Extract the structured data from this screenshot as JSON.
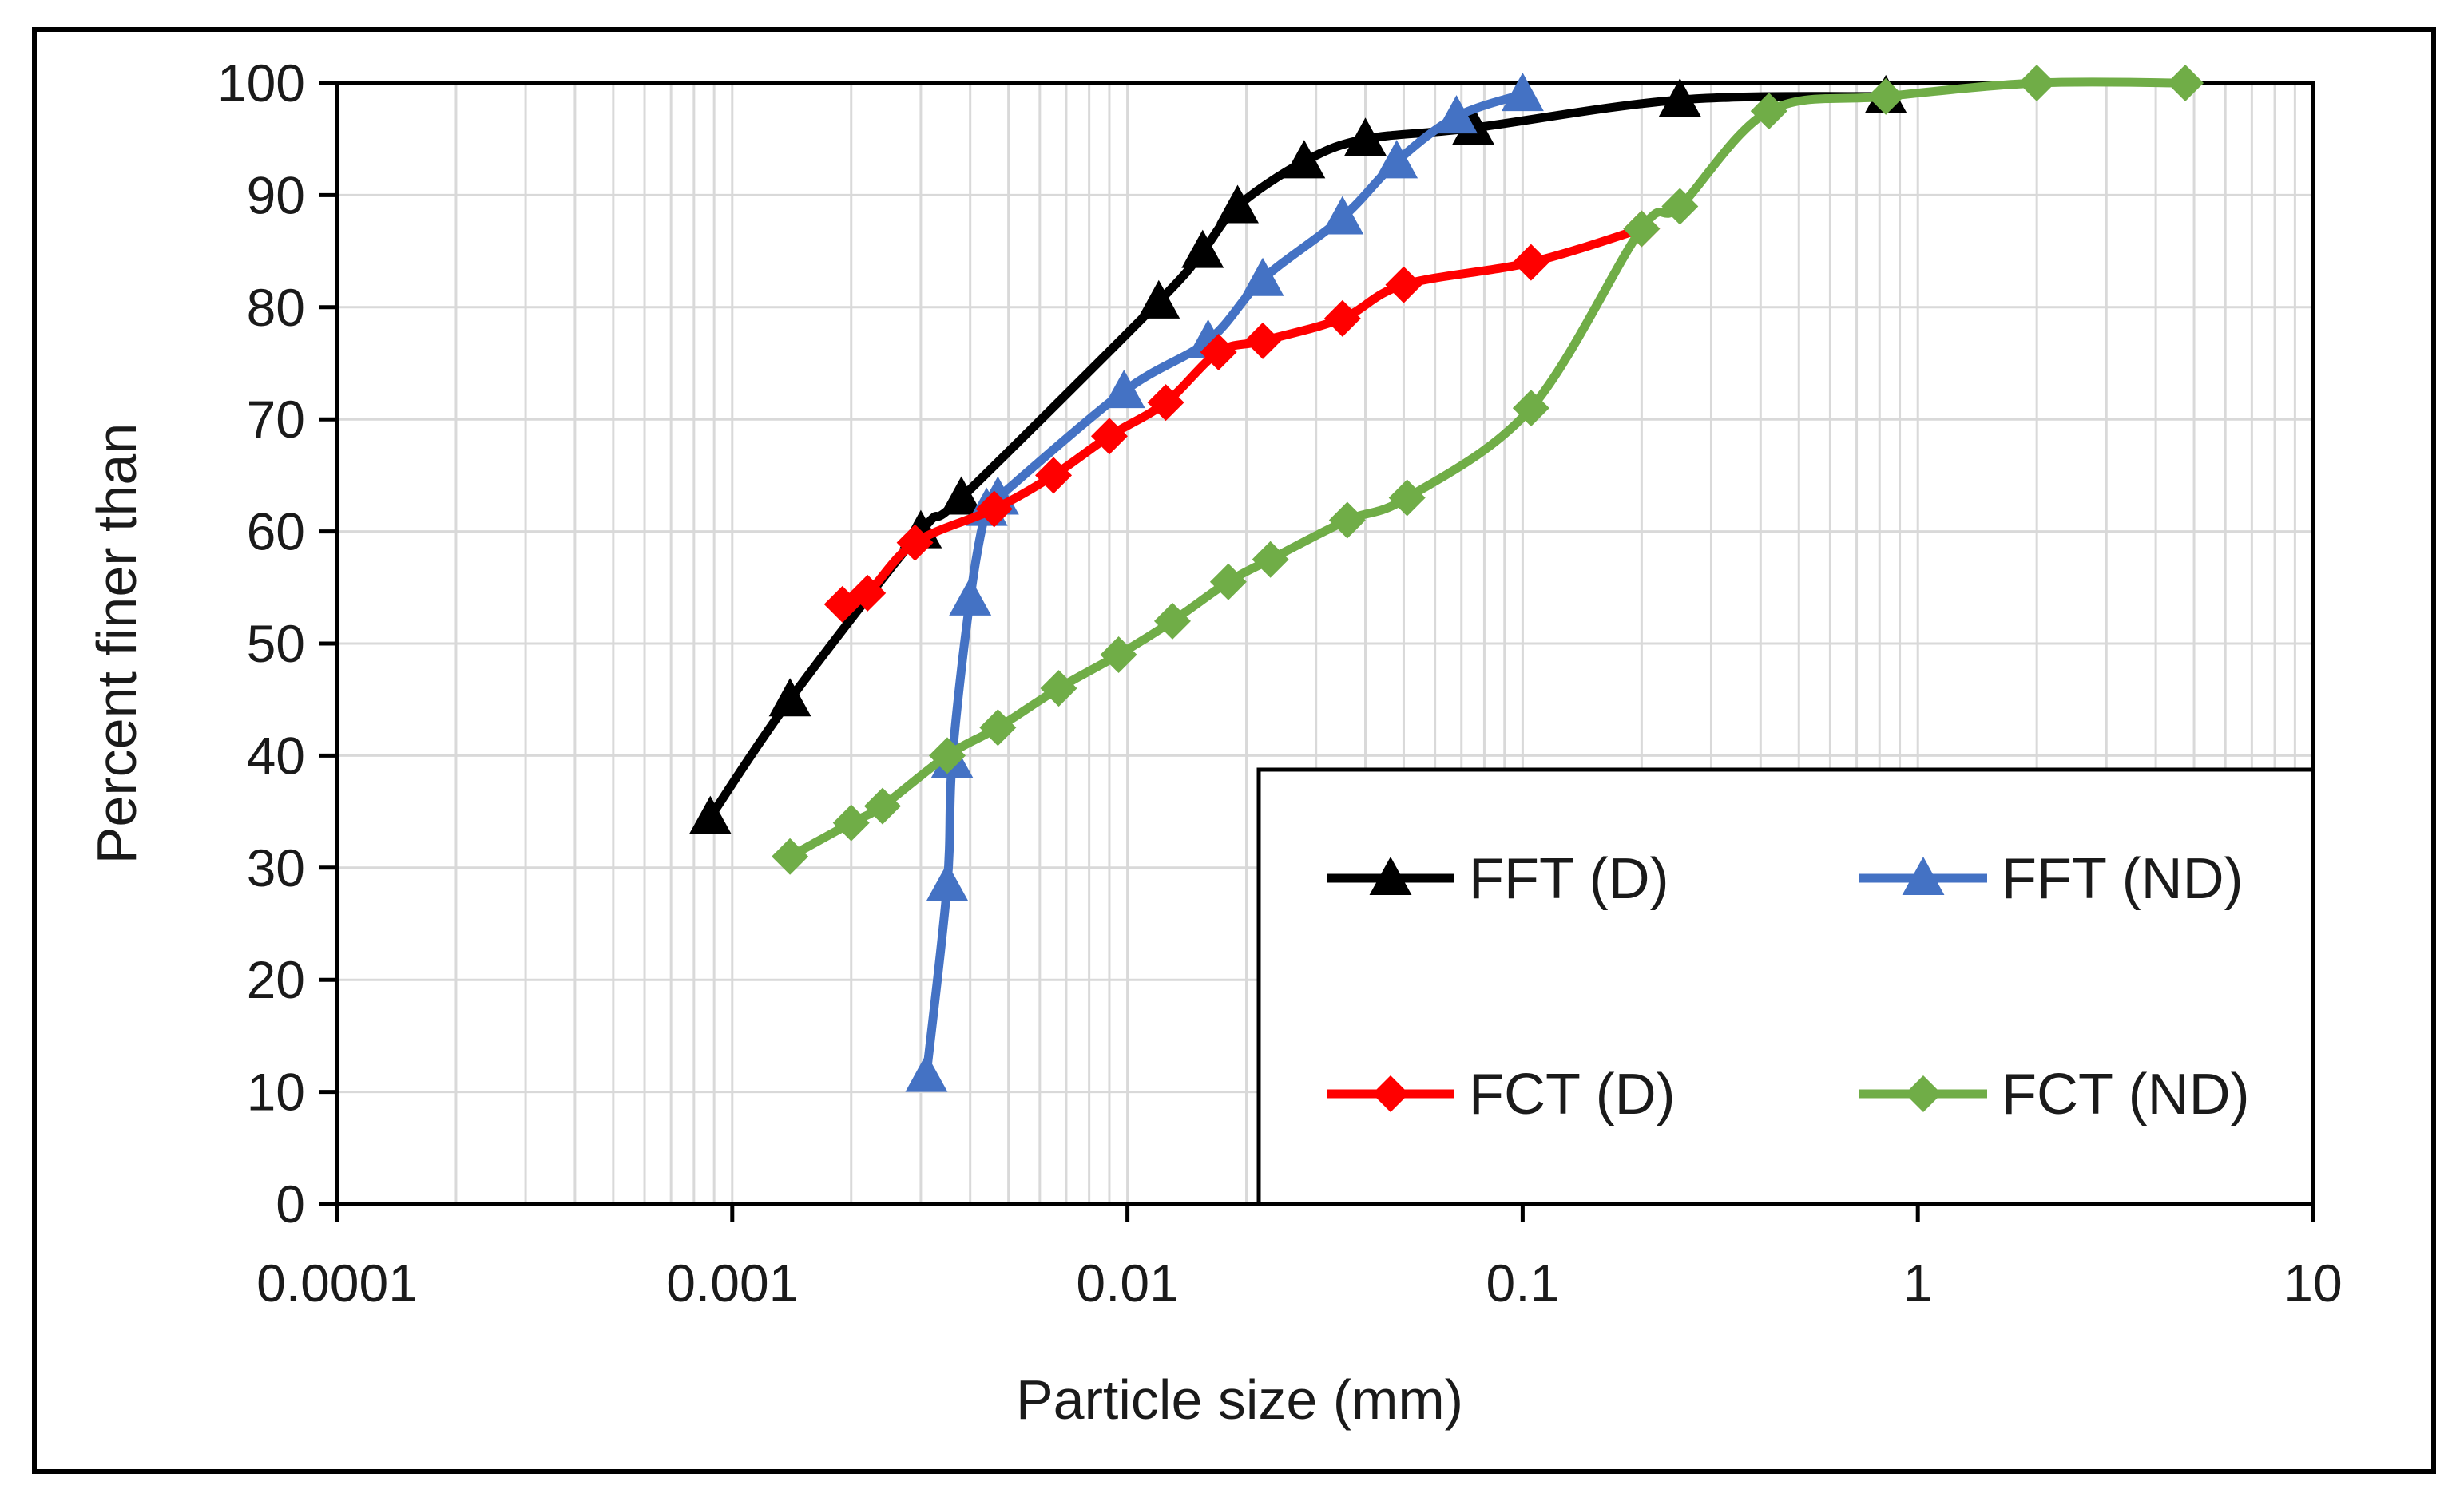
{
  "chart_data": {
    "type": "line",
    "title": "",
    "xlabel": "Particle size (mm)",
    "ylabel": "Percent finer than",
    "xscale": "log",
    "xlim": [
      0.0001,
      10
    ],
    "ylim": [
      0,
      100
    ],
    "grid": true,
    "legend_position": "bottom-right",
    "x_ticks": [
      {
        "value": 0.0001,
        "label": "0.0001"
      },
      {
        "value": 0.001,
        "label": "0.001"
      },
      {
        "value": 0.01,
        "label": "0.01"
      },
      {
        "value": 0.1,
        "label": "0.1"
      },
      {
        "value": 1,
        "label": "1"
      },
      {
        "value": 10,
        "label": "10"
      }
    ],
    "y_ticks": [
      0,
      10,
      20,
      30,
      40,
      50,
      60,
      70,
      80,
      90,
      100
    ],
    "series": [
      {
        "name": "FFT (D)",
        "color": "#000000",
        "marker": "triangle",
        "x": [
          0.00088,
          0.0014,
          0.003,
          0.0038,
          0.012,
          0.0155,
          0.019,
          0.028,
          0.04,
          0.075,
          0.25,
          0.83
        ],
        "y": [
          34.5,
          45,
          60,
          63,
          80.5,
          85,
          89,
          93,
          95,
          96,
          98.5,
          98.8
        ]
      },
      {
        "name": "FFT (ND)",
        "color": "#4472C4",
        "marker": "triangle",
        "x": [
          0.0031,
          0.0035,
          0.0036,
          0.004,
          0.0044,
          0.0047,
          0.0098,
          0.016,
          0.022,
          0.035,
          0.048,
          0.068,
          0.1
        ],
        "y": [
          11.5,
          28.5,
          39.5,
          54,
          62,
          63,
          72.5,
          77,
          82.5,
          88,
          93,
          97,
          99
        ]
      },
      {
        "name": "FCT (D)",
        "color": "#FF0000",
        "marker": "diamond",
        "x": [
          0.0019,
          0.0022,
          0.0029,
          0.0046,
          0.0065,
          0.009,
          0.0125,
          0.017,
          0.022,
          0.035,
          0.05,
          0.105,
          0.2
        ],
        "y": [
          53.5,
          54.5,
          59,
          62,
          65,
          68.5,
          71.5,
          76,
          77,
          79,
          82,
          84,
          87
        ]
      },
      {
        "name": "FCT (ND)",
        "color": "#70AD47",
        "marker": "diamond",
        "x": [
          0.0014,
          0.002,
          0.0024,
          0.0035,
          0.0047,
          0.0067,
          0.0095,
          0.013,
          0.018,
          0.023,
          0.036,
          0.051,
          0.105,
          0.2,
          0.25,
          0.42,
          0.83,
          2.0,
          4.75
        ],
        "y": [
          31,
          34,
          35.5,
          40,
          42.5,
          46,
          49,
          52,
          55.5,
          57.5,
          61,
          63,
          71,
          87,
          89,
          97.5,
          98.8,
          100,
          100
        ]
      }
    ]
  }
}
